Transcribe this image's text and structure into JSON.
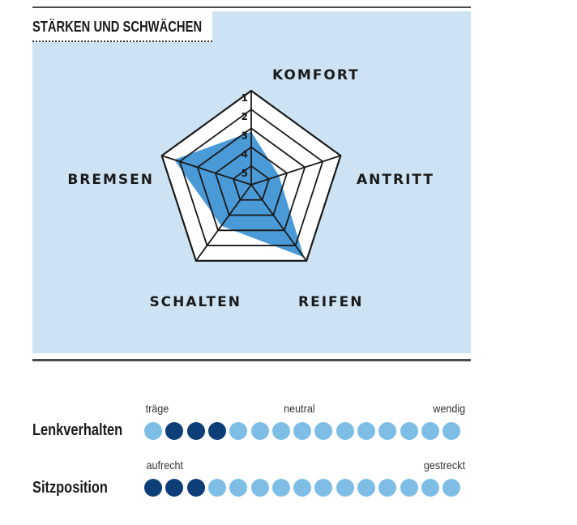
{
  "section_title": "STÄRKEN UND SCHWÄCHEN",
  "chart_data": {
    "type": "radar",
    "axes": [
      "KOMFORT",
      "ANTRITT",
      "REIFEN",
      "SCHALTEN",
      "BREMSEN"
    ],
    "scale_labels": [
      "1",
      "2",
      "3",
      "4",
      "5"
    ],
    "scale": [
      1,
      5
    ],
    "scale_note": "1 = outer ring (best), 5 = center",
    "values": [
      2.9,
      4.0,
      1.2,
      3.0,
      1.6
    ],
    "colors": {
      "fill": "#4a9ad8",
      "grid": "#1a1a1a",
      "panel": "#cde3f3"
    }
  },
  "scales": [
    {
      "label": "Lenkverhalten",
      "anchors": {
        "left": "träge",
        "middle": "neutral",
        "right": "wendig"
      },
      "dots_total": 15,
      "filled": [
        2,
        3,
        4
      ]
    },
    {
      "label": "Sitzposition",
      "anchors": {
        "left": "aufrecht",
        "right": "gestreckt"
      },
      "dots_total": 15,
      "filled": [
        1,
        2,
        3
      ]
    }
  ]
}
